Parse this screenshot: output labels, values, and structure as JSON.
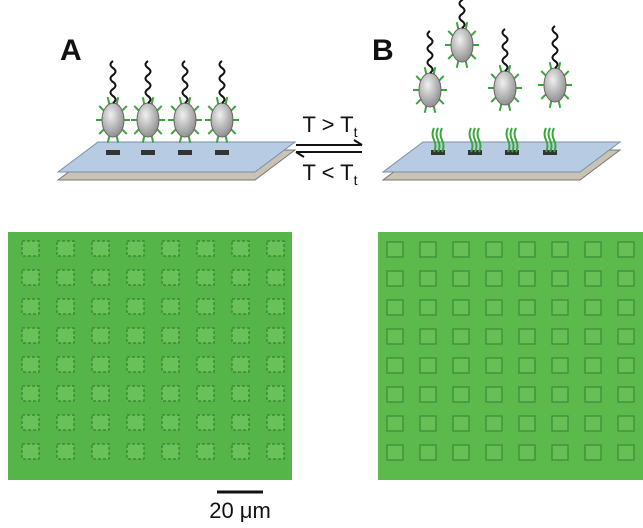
{
  "panels": [
    {
      "label": "A"
    },
    {
      "label": "B"
    }
  ],
  "transition": {
    "forward": {
      "text": "T > T",
      "subscript": "t"
    },
    "reverse": {
      "text": "T < T",
      "subscript": "t"
    }
  },
  "scale_bar": "20 μm"
}
